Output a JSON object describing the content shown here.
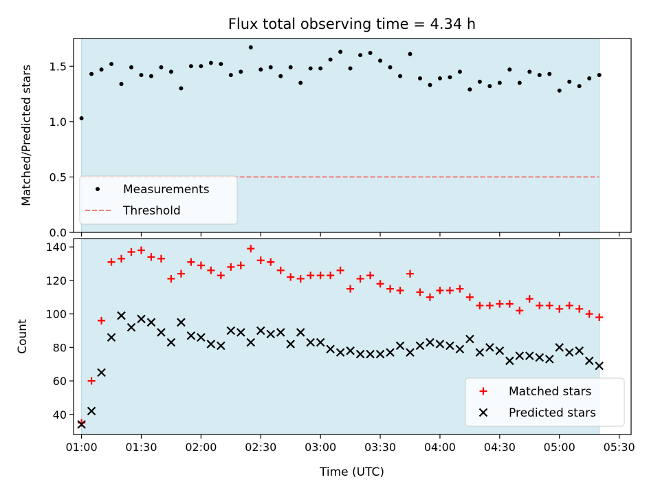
{
  "chart_data": [
    {
      "type": "scatter",
      "title": "Flux total observing time = 4.34 h",
      "ylabel": "Matched/Predicted stars",
      "xlabel": "",
      "xlim": [
        "00:56",
        "05:36"
      ],
      "ylim": [
        0,
        1.75
      ],
      "x_ticks": [
        "01:00",
        "01:30",
        "02:00",
        "02:30",
        "03:00",
        "03:30",
        "04:00",
        "04:30",
        "05:00",
        "05:30"
      ],
      "y_ticks": [
        "0.0",
        "0.5",
        "1.0",
        "1.5"
      ],
      "shaded_interval": [
        "01:00",
        "05:20"
      ],
      "shade_color": "#add8e6",
      "legend_position": "lower-left",
      "x": [
        "01:00",
        "01:05",
        "01:10",
        "01:15",
        "01:20",
        "01:25",
        "01:30",
        "01:35",
        "01:40",
        "01:45",
        "01:50",
        "01:55",
        "02:00",
        "02:05",
        "02:10",
        "02:15",
        "02:20",
        "02:25",
        "02:30",
        "02:35",
        "02:40",
        "02:45",
        "02:50",
        "02:55",
        "03:00",
        "03:05",
        "03:10",
        "03:15",
        "03:20",
        "03:25",
        "03:30",
        "03:35",
        "03:40",
        "03:45",
        "03:50",
        "03:55",
        "04:00",
        "04:05",
        "04:10",
        "04:15",
        "04:20",
        "04:25",
        "04:30",
        "04:35",
        "04:40",
        "04:45",
        "04:50",
        "04:55",
        "05:00",
        "05:05",
        "05:10",
        "05:15",
        "05:20"
      ],
      "series": [
        {
          "name": "Measurements",
          "marker": "dot",
          "color": "#000000",
          "values": [
            1.03,
            1.43,
            1.47,
            1.52,
            1.34,
            1.49,
            1.42,
            1.41,
            1.49,
            1.45,
            1.3,
            1.5,
            1.5,
            1.53,
            1.52,
            1.42,
            1.45,
            1.67,
            1.47,
            1.49,
            1.41,
            1.49,
            1.35,
            1.48,
            1.48,
            1.56,
            1.63,
            1.48,
            1.6,
            1.62,
            1.55,
            1.49,
            1.41,
            1.61,
            1.39,
            1.33,
            1.39,
            1.4,
            1.45,
            1.29,
            1.36,
            1.32,
            1.35,
            1.47,
            1.35,
            1.45,
            1.42,
            1.43,
            1.28,
            1.36,
            1.32,
            1.39,
            1.42
          ]
        }
      ],
      "reference_lines": [
        {
          "name": "Threshold",
          "y": 0.5,
          "style": "dashed",
          "color": "#f08080"
        }
      ]
    },
    {
      "type": "scatter",
      "title": "",
      "ylabel": "Count",
      "xlabel": "Time (UTC)",
      "xlim": [
        "00:56",
        "05:36"
      ],
      "ylim": [
        28,
        145
      ],
      "x_ticks": [
        "01:00",
        "01:30",
        "02:00",
        "02:30",
        "03:00",
        "03:30",
        "04:00",
        "04:30",
        "05:00",
        "05:30"
      ],
      "y_ticks": [
        "40",
        "60",
        "80",
        "100",
        "120",
        "140"
      ],
      "shaded_interval": [
        "01:00",
        "05:20"
      ],
      "shade_color": "#add8e6",
      "legend_position": "lower-right",
      "x": [
        "01:00",
        "01:05",
        "01:10",
        "01:15",
        "01:20",
        "01:25",
        "01:30",
        "01:35",
        "01:40",
        "01:45",
        "01:50",
        "01:55",
        "02:00",
        "02:05",
        "02:10",
        "02:15",
        "02:20",
        "02:25",
        "02:30",
        "02:35",
        "02:40",
        "02:45",
        "02:50",
        "02:55",
        "03:00",
        "03:05",
        "03:10",
        "03:15",
        "03:20",
        "03:25",
        "03:30",
        "03:35",
        "03:40",
        "03:45",
        "03:50",
        "03:55",
        "04:00",
        "04:05",
        "04:10",
        "04:15",
        "04:20",
        "04:25",
        "04:30",
        "04:35",
        "04:40",
        "04:45",
        "04:50",
        "04:55",
        "05:00",
        "05:05",
        "05:10",
        "05:15",
        "05:20"
      ],
      "series": [
        {
          "name": "Matched stars",
          "marker": "plus",
          "color": "#ff0000",
          "values": [
            35,
            60,
            96,
            131,
            133,
            137,
            138,
            134,
            133,
            121,
            124,
            131,
            129,
            126,
            123,
            128,
            129,
            139,
            132,
            131,
            126,
            122,
            121,
            123,
            123,
            123,
            126,
            115,
            121,
            123,
            118,
            115,
            114,
            124,
            113,
            110,
            114,
            114,
            115,
            110,
            105,
            105,
            106,
            106,
            102,
            109,
            105,
            105,
            103,
            105,
            103,
            100,
            98
          ]
        },
        {
          "name": "Predicted stars",
          "marker": "x",
          "color": "#000000",
          "values": [
            34,
            42,
            65,
            86,
            99,
            92,
            97,
            95,
            89,
            83,
            95,
            87,
            86,
            82,
            81,
            90,
            89,
            83,
            90,
            88,
            89,
            82,
            89,
            83,
            83,
            79,
            77,
            78,
            76,
            76,
            76,
            77,
            81,
            77,
            81,
            83,
            82,
            81,
            79,
            85,
            77,
            80,
            78,
            72,
            75,
            75,
            74,
            73,
            80,
            77,
            78,
            72,
            69
          ]
        }
      ]
    }
  ]
}
